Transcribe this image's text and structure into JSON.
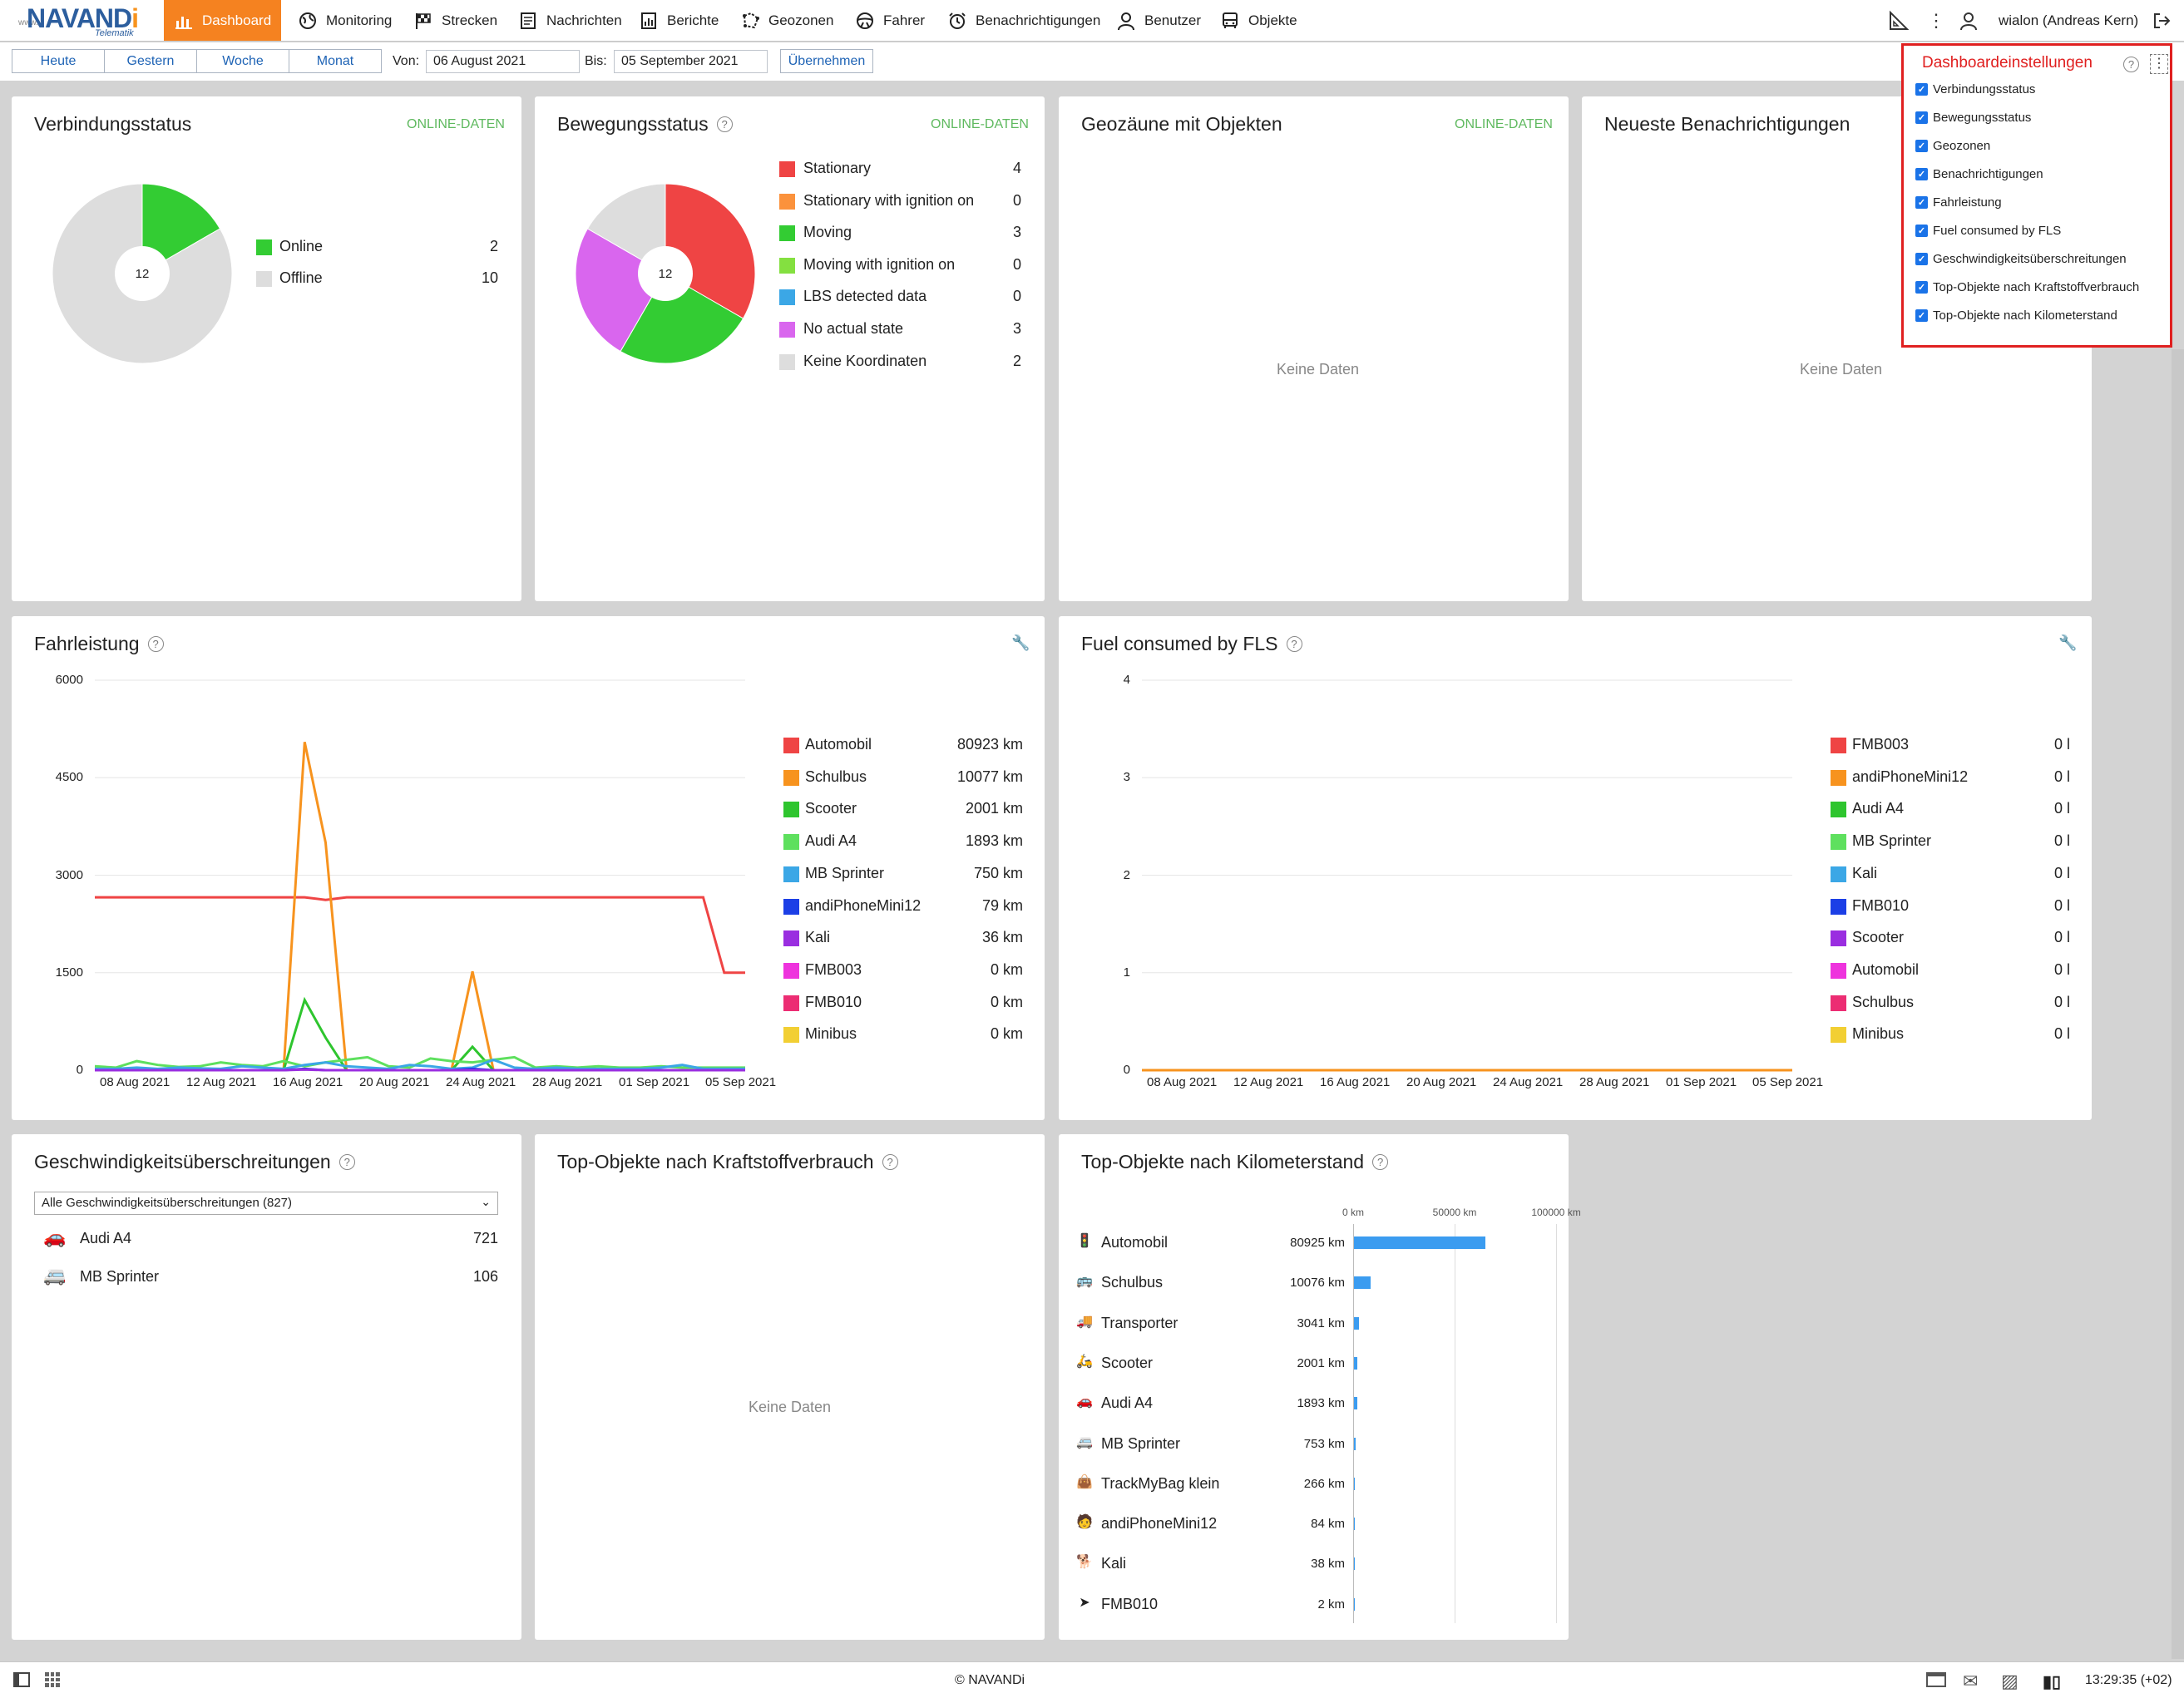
{
  "app": {
    "logo_text_a": "NAVAND",
    "logo_text_b": "i",
    "logo_sub": "Telematik",
    "logo_www": "www."
  },
  "nav": [
    {
      "label": "Dashboard",
      "icon": "bar-chart-icon"
    },
    {
      "label": "Monitoring",
      "icon": "globe-icon"
    },
    {
      "label": "Strecken",
      "icon": "flag-icon"
    },
    {
      "label": "Nachrichten",
      "icon": "message-icon"
    },
    {
      "label": "Berichte",
      "icon": "report-icon"
    },
    {
      "label": "Geozonen",
      "icon": "geofence-icon"
    },
    {
      "label": "Fahrer",
      "icon": "steering-wheel-icon"
    },
    {
      "label": "Benachrichtigungen",
      "icon": "alarm-clock-icon"
    },
    {
      "label": "Benutzer",
      "icon": "user-icon"
    },
    {
      "label": "Objekte",
      "icon": "bus-icon"
    }
  ],
  "user": "wialon (Andreas Kern)",
  "datebar": {
    "presets": [
      "Heute",
      "Gestern",
      "Woche",
      "Monat"
    ],
    "from_label": "Von:",
    "from_value": "06 August 2021",
    "to_label": "Bis:",
    "to_value": "05 September 2021",
    "apply": "Übernehmen"
  },
  "settings": {
    "title": "Dashboardeinstellungen",
    "items": [
      "Verbindungsstatus",
      "Bewegungsstatus",
      "Geozonen",
      "Benachrichtigungen",
      "Fahrleistung",
      "Fuel consumed by FLS",
      "Geschwindigkeitsüberschreitungen",
      "Top-Objekte nach Kraftstoffverbrauch",
      "Top-Objekte nach Kilometerstand"
    ]
  },
  "connection": {
    "title": "Verbindungsstatus",
    "badge": "ONLINE-DATEN",
    "total": "12",
    "items": [
      {
        "label": "Online",
        "value": 2,
        "color": "#33cc33"
      },
      {
        "label": "Offline",
        "value": 10,
        "color": "#dddddd"
      }
    ]
  },
  "movement": {
    "title": "Bewegungsstatus",
    "badge": "ONLINE-DATEN",
    "total": "12",
    "items": [
      {
        "label": "Stationary",
        "value": 4,
        "color": "#ef4444"
      },
      {
        "label": "Stationary with ignition on",
        "value": 0,
        "color": "#fb923c"
      },
      {
        "label": "Moving",
        "value": 3,
        "color": "#33cc33"
      },
      {
        "label": "Moving with ignition on",
        "value": 0,
        "color": "#84e040"
      },
      {
        "label": "LBS detected data",
        "value": 0,
        "color": "#3ba7e6"
      },
      {
        "label": "No actual state",
        "value": 3,
        "color": "#d966ee"
      },
      {
        "label": "Keine Koordinaten",
        "value": 2,
        "color": "#dddddd"
      }
    ]
  },
  "geozones": {
    "title": "Geozäune mit Objekten",
    "badge": "ONLINE-DATEN",
    "empty": "Keine Daten"
  },
  "notifications": {
    "title": "Neueste Benachrichtigungen",
    "empty": "Keine Daten"
  },
  "fahrleistung": {
    "title": "Fahrleistung",
    "legend": [
      {
        "name": "Automobil",
        "value": "80923 km",
        "color": "#ef4444"
      },
      {
        "name": "Schulbus",
        "value": "10077 km",
        "color": "#f7931e"
      },
      {
        "name": "Scooter",
        "value": "2001 km",
        "color": "#2ec52e"
      },
      {
        "name": "Audi A4",
        "value": "1893 km",
        "color": "#5ee05e"
      },
      {
        "name": "MB Sprinter",
        "value": "750 km",
        "color": "#3ba7e6"
      },
      {
        "name": "andiPhoneMini12",
        "value": "79 km",
        "color": "#1c3fe6"
      },
      {
        "name": "Kali",
        "value": "36 km",
        "color": "#9a2ee0"
      },
      {
        "name": "FMB003",
        "value": "0 km",
        "color": "#ee33dd"
      },
      {
        "name": "FMB010",
        "value": "0 km",
        "color": "#ec2d73"
      },
      {
        "name": "Minibus",
        "value": "0 km",
        "color": "#f2cf33"
      }
    ]
  },
  "fuel": {
    "title": "Fuel consumed by FLS",
    "legend": [
      {
        "name": "FMB003",
        "value": "0 l",
        "color": "#ef4444"
      },
      {
        "name": "andiPhoneMini12",
        "value": "0 l",
        "color": "#f7931e"
      },
      {
        "name": "Audi A4",
        "value": "0 l",
        "color": "#2ec52e"
      },
      {
        "name": "MB Sprinter",
        "value": "0 l",
        "color": "#5ee05e"
      },
      {
        "name": "Kali",
        "value": "0 l",
        "color": "#3ba7e6"
      },
      {
        "name": "FMB010",
        "value": "0 l",
        "color": "#1c3fe6"
      },
      {
        "name": "Scooter",
        "value": "0 l",
        "color": "#9a2ee0"
      },
      {
        "name": "Automobil",
        "value": "0 l",
        "color": "#ee33dd"
      },
      {
        "name": "Schulbus",
        "value": "0 l",
        "color": "#ec2d73"
      },
      {
        "name": "Minibus",
        "value": "0 l",
        "color": "#f2cf33"
      }
    ]
  },
  "speeding": {
    "title": "Geschwindigkeitsüberschreitungen",
    "select": "Alle Geschwindigkeitsüberschreitungen (827)",
    "rows": [
      {
        "name": "Audi A4",
        "value": "721",
        "icon": "car-icon"
      },
      {
        "name": "MB Sprinter",
        "value": "106",
        "icon": "van-icon"
      }
    ]
  },
  "fuel_top": {
    "title": "Top-Objekte nach Kraftstoffverbrauch",
    "empty": "Keine Daten"
  },
  "mileage_top": {
    "title": "Top-Objekte nach Kilometerstand",
    "axis_labels": [
      "0 km",
      "50000 km",
      "100000 km"
    ],
    "rows": [
      {
        "name": "Automobil",
        "label": "80925 km",
        "icon": "traffic-light-icon"
      },
      {
        "name": "Schulbus",
        "label": "10076 km",
        "icon": "bus-icon"
      },
      {
        "name": "Transporter",
        "label": "3041 km",
        "icon": "truck-icon"
      },
      {
        "name": "Scooter",
        "label": "2001 km",
        "icon": "scooter-icon"
      },
      {
        "name": "Audi A4",
        "label": "1893 km",
        "icon": "car-icon"
      },
      {
        "name": "MB Sprinter",
        "label": "753 km",
        "icon": "van-icon"
      },
      {
        "name": "TrackMyBag klein",
        "label": "266 km",
        "icon": "bag-icon"
      },
      {
        "name": "andiPhoneMini12",
        "label": "84 km",
        "icon": "person-icon"
      },
      {
        "name": "Kali",
        "label": "38 km",
        "icon": "dog-icon"
      },
      {
        "name": "FMB010",
        "label": "2 km",
        "icon": "navigation-icon"
      }
    ]
  },
  "footer": {
    "copyright": "© NAVANDi",
    "time": "13:29:35 (+02)"
  },
  "chart_data": [
    {
      "type": "line",
      "title": "Fahrleistung",
      "ylim": [
        0,
        6000
      ],
      "yticks": [
        "0",
        "1500",
        "3000",
        "4500",
        "6000"
      ],
      "xticks": [
        "08 Aug 2021",
        "12 Aug 2021",
        "16 Aug 2021",
        "20 Aug 2021",
        "24 Aug 2021",
        "28 Aug 2021",
        "01 Sep 2021",
        "05 Sep 2021"
      ],
      "x": [
        "06 Aug 2021",
        "07 Aug 2021",
        "08 Aug 2021",
        "09 Aug 2021",
        "10 Aug 2021",
        "11 Aug 2021",
        "12 Aug 2021",
        "13 Aug 2021",
        "14 Aug 2021",
        "15 Aug 2021",
        "16 Aug 2021",
        "17 Aug 2021",
        "18 Aug 2021",
        "19 Aug 2021",
        "20 Aug 2021",
        "21 Aug 2021",
        "22 Aug 2021",
        "23 Aug 2021",
        "24 Aug 2021",
        "25 Aug 2021",
        "26 Aug 2021",
        "27 Aug 2021",
        "28 Aug 2021",
        "29 Aug 2021",
        "30 Aug 2021",
        "31 Aug 2021",
        "01 Sep 2021",
        "02 Sep 2021",
        "03 Sep 2021",
        "04 Sep 2021",
        "05 Sep 2021",
        "06 Sep 2021"
      ],
      "series": [
        {
          "name": "Automobil",
          "color": "#ef4444",
          "values": [
            2660,
            2660,
            2660,
            2660,
            2660,
            2660,
            2660,
            2660,
            2660,
            2660,
            2660,
            2620,
            2660,
            2660,
            2660,
            2660,
            2660,
            2660,
            2660,
            2660,
            2660,
            2660,
            2660,
            2660,
            2660,
            2660,
            2660,
            2660,
            2660,
            2660,
            1500,
            1500
          ]
        },
        {
          "name": "Schulbus",
          "color": "#f7931e",
          "values": [
            0,
            0,
            0,
            0,
            0,
            0,
            0,
            0,
            0,
            0,
            5050,
            3500,
            0,
            0,
            0,
            0,
            0,
            0,
            1520,
            0,
            0,
            0,
            0,
            0,
            0,
            0,
            0,
            0,
            0,
            0,
            0,
            0
          ]
        },
        {
          "name": "Scooter",
          "color": "#2ec52e",
          "values": [
            0,
            0,
            0,
            0,
            0,
            0,
            0,
            0,
            0,
            0,
            1080,
            500,
            0,
            0,
            0,
            0,
            0,
            0,
            360,
            0,
            0,
            0,
            0,
            0,
            0,
            0,
            0,
            0,
            0,
            0,
            0,
            0
          ]
        },
        {
          "name": "Audi A4",
          "color": "#5ee05e",
          "values": [
            60,
            40,
            140,
            80,
            50,
            60,
            120,
            80,
            60,
            140,
            60,
            120,
            160,
            200,
            60,
            40,
            180,
            140,
            120,
            160,
            200,
            40,
            60,
            40,
            60,
            40,
            40,
            60,
            40,
            40,
            40,
            40
          ]
        },
        {
          "name": "MB Sprinter",
          "color": "#3ba7e6",
          "values": [
            20,
            20,
            40,
            20,
            40,
            30,
            20,
            60,
            40,
            20,
            80,
            120,
            60,
            40,
            20,
            80,
            60,
            20,
            40,
            160,
            40,
            20,
            40,
            20,
            20,
            20,
            20,
            40,
            80,
            20,
            20,
            20
          ]
        },
        {
          "name": "andiPhoneMini12",
          "color": "#1c3fe6",
          "values": [
            0,
            0,
            0,
            0,
            0,
            0,
            0,
            0,
            0,
            0,
            20,
            0,
            0,
            0,
            0,
            0,
            0,
            0,
            20,
            0,
            0,
            0,
            0,
            0,
            0,
            0,
            0,
            0,
            0,
            0,
            0,
            0
          ]
        },
        {
          "name": "Kali",
          "color": "#9a2ee0",
          "values": [
            0,
            0,
            0,
            0,
            0,
            0,
            0,
            0,
            0,
            0,
            10,
            0,
            0,
            0,
            0,
            0,
            0,
            0,
            0,
            0,
            0,
            0,
            0,
            0,
            0,
            0,
            0,
            0,
            0,
            0,
            0,
            0
          ]
        }
      ]
    },
    {
      "type": "line",
      "title": "Fuel consumed by FLS",
      "ylim": [
        0,
        4
      ],
      "yticks": [
        "0",
        "1",
        "2",
        "3",
        "4"
      ],
      "xticks": [
        "08 Aug 2021",
        "12 Aug 2021",
        "16 Aug 2021",
        "20 Aug 2021",
        "24 Aug 2021",
        "28 Aug 2021",
        "01 Sep 2021",
        "05 Sep 2021"
      ],
      "series": [
        {
          "name": "FMB003",
          "color": "#f7931e",
          "values": [
            0,
            0
          ]
        }
      ]
    },
    {
      "type": "bar",
      "title": "Top-Objekte nach Kilometerstand",
      "categories": [
        "Automobil",
        "Schulbus",
        "Transporter",
        "Scooter",
        "Audi A4",
        "MB Sprinter",
        "TrackMyBag klein",
        "andiPhoneMini12",
        "Kali",
        "FMB010"
      ],
      "values": [
        80925,
        10076,
        3041,
        2001,
        1893,
        753,
        266,
        84,
        38,
        2
      ],
      "xlim": [
        0,
        100000
      ],
      "color": "#3b9cf0"
    },
    {
      "type": "pie",
      "title": "Verbindungsstatus",
      "categories": [
        "Online",
        "Offline"
      ],
      "values": [
        2,
        10
      ]
    },
    {
      "type": "pie",
      "title": "Bewegungsstatus",
      "categories": [
        "Stationary",
        "Moving",
        "No actual state",
        "Keine Koordinaten"
      ],
      "values": [
        4,
        3,
        3,
        2
      ]
    }
  ]
}
